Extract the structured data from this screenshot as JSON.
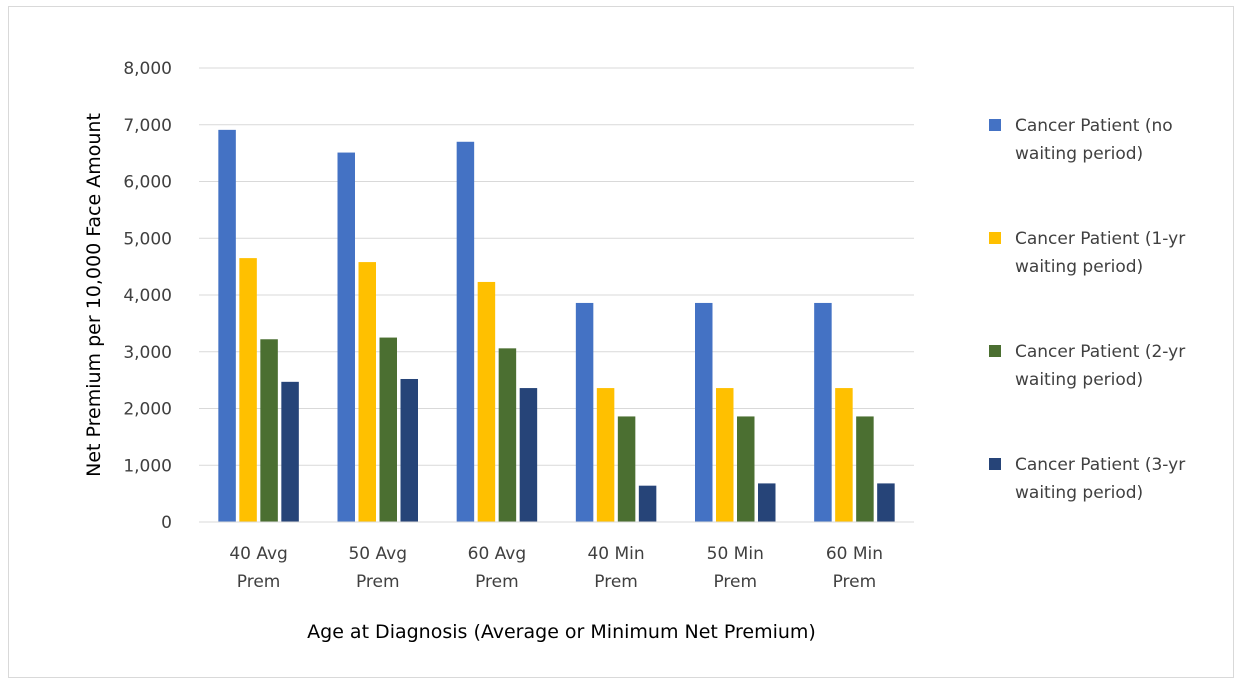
{
  "chart_data": {
    "type": "bar",
    "title": "",
    "xlabel": "Age at Diagnosis (Average or Minimum Net Premium)",
    "ylabel": "Net Premium per 10,000 Face Amount",
    "ylim": [
      0,
      8000
    ],
    "yticks": [
      0,
      1000,
      2000,
      3000,
      4000,
      5000,
      6000,
      7000,
      8000
    ],
    "ytick_labels": [
      "0",
      "1,000",
      "2,000",
      "3,000",
      "4,000",
      "5,000",
      "6,000",
      "7,000",
      "8,000"
    ],
    "categories": [
      [
        "40 Avg",
        "Prem"
      ],
      [
        "50 Avg",
        "Prem"
      ],
      [
        "60 Avg",
        "Prem"
      ],
      [
        "40 Min",
        "Prem"
      ],
      [
        "50 Min",
        "Prem"
      ],
      [
        "60 Min",
        "Prem"
      ]
    ],
    "series": [
      {
        "name": [
          "Cancer Patient (no",
          "waiting period)"
        ],
        "color": "#4472c4",
        "values": [
          6910,
          6510,
          6700,
          3860,
          3860,
          3860
        ]
      },
      {
        "name": [
          "Cancer Patient (1-yr",
          "waiting period)"
        ],
        "color": "#ffc000",
        "values": [
          4650,
          4580,
          4230,
          2360,
          2360,
          2360
        ]
      },
      {
        "name": [
          "Cancer Patient (2-yr",
          "waiting period)"
        ],
        "color": "#4b6f31",
        "values": [
          3220,
          3250,
          3060,
          1860,
          1860,
          1860
        ]
      },
      {
        "name": [
          "Cancer Patient (3-yr",
          "waiting period)"
        ],
        "color": "#264478",
        "values": [
          2470,
          2520,
          2360,
          640,
          680,
          680
        ]
      }
    ],
    "grid": true,
    "legend_position": "right"
  }
}
